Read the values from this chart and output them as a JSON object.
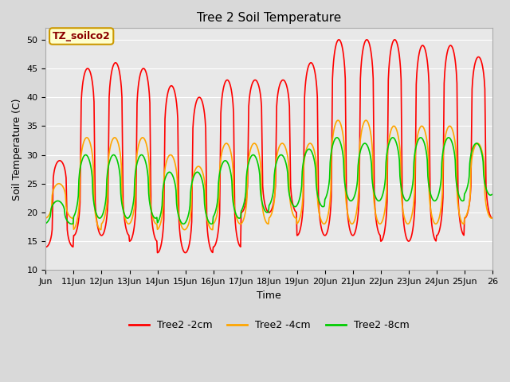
{
  "title": "Tree 2 Soil Temperature",
  "xlabel": "Time",
  "ylabel": "Soil Temperature (C)",
  "ylim": [
    10,
    52
  ],
  "fig_bg_color": "#d9d9d9",
  "plot_bg_color": "#e8e8e8",
  "legend_label": "TZ_soilco2",
  "series": {
    "Tree2 -2cm": {
      "color": "#ff0000",
      "lw": 1.2
    },
    "Tree2 -4cm": {
      "color": "#ffa500",
      "lw": 1.2
    },
    "Tree2 -8cm": {
      "color": "#00cc00",
      "lw": 1.2
    }
  },
  "xtick_labels": [
    "Jun",
    "11Jun",
    "12Jun",
    "13Jun",
    "14Jun",
    "15Jun",
    "16Jun",
    "17Jun",
    "18Jun",
    "19Jun",
    "20Jun",
    "21Jun",
    "22Jun",
    "23Jun",
    "24Jun",
    "25Jun",
    "26"
  ],
  "ytick_values": [
    10,
    15,
    20,
    25,
    30,
    35,
    40,
    45,
    50
  ],
  "red_mins": [
    14,
    16,
    16,
    15,
    13,
    13,
    14,
    20,
    20,
    16,
    16,
    16,
    15,
    15,
    16,
    19
  ],
  "red_maxs": [
    29,
    45,
    46,
    45,
    42,
    40,
    43,
    43,
    43,
    46,
    50,
    50,
    50,
    49,
    49,
    47
  ],
  "orange_mins": [
    19,
    17,
    18,
    18,
    17,
    17,
    18,
    18,
    19,
    18,
    18,
    18,
    18,
    18,
    18,
    19
  ],
  "orange_maxs": [
    25,
    33,
    33,
    33,
    30,
    28,
    32,
    32,
    32,
    32,
    36,
    36,
    35,
    35,
    35,
    32
  ],
  "green_mins": [
    18,
    19,
    19,
    19,
    18,
    18,
    19,
    20,
    21,
    21,
    22,
    22,
    22,
    22,
    22,
    23
  ],
  "green_maxs": [
    22,
    30,
    30,
    30,
    27,
    27,
    29,
    30,
    30,
    31,
    33,
    32,
    33,
    33,
    33,
    32
  ],
  "red_peak_sharpness": 4.0,
  "orange_peak_sharpness": 2.5,
  "green_peak_sharpness": 2.0
}
